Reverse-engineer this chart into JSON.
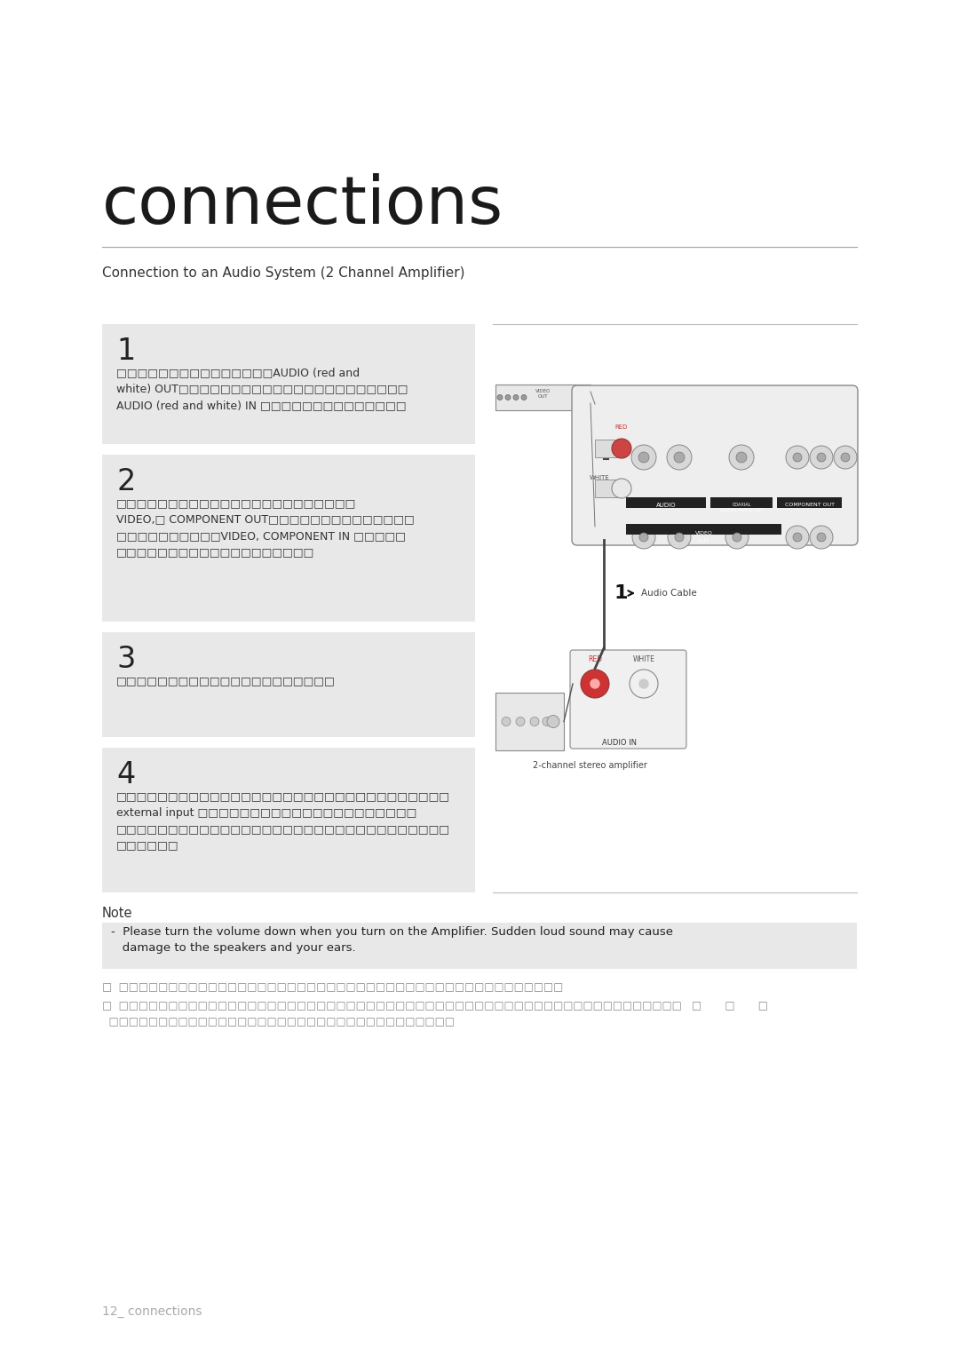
{
  "page_title": "connections",
  "subtitle": "Connection to an Audio System (2 Channel Amplifier)",
  "bg_color": "#ffffff",
  "title_color": "#1a1a1a",
  "subtitle_color": "#333333",
  "section_bg": "#e8e8e8",
  "note_bg": "#e8e8e8",
  "step1_num": "1",
  "step1_text": "□□□□□□□□□□□□□□□AUDIO (red and\nwhite) OUT□□□□□□□□□□□□□□□□□□□□□□\nAUDIO (red and white) IN □□□□□□□□□□□□□□",
  "step2_num": "2",
  "step2_text": "□□□□□□□□□□□□□□□□□□□□□□□\nVIDEO,□ COMPONENT OUT□□□□□□□□□□□□□□\n□□□□□□□□□□VIDEO, COMPONENT IN □□□□□\n□□□□□□□□□□□□□□□□□□□",
  "step3_num": "3",
  "step3_text": "□□□□□□□□□□□□□□□□□□□□□",
  "step4_num": "4",
  "step4_text": "□□□□□□□□□□□□□□□□□□□□□□□□□□□□□□□□\nexternal input □□□□□□□□□□□□□□□□□□□□□\n□□□□□□□□□□□□□□□□□□□□□□□□□□□□□□□□\n□□□□□□",
  "note_label": "Note",
  "note_bullet": "-  Please turn the volume down when you turn on the Amplifier. Sudden loud sound may cause\n   damage to the speakers and your ears.",
  "note_text2": "□  □□□□□□□□□□□□□□□□□□□□□□□□□□□□□□□□□□□□□□□□□□□□□",
  "note_text3": "□  □□□□□□□□□□□□□□□□□□□□□□□□□□□□□□□□□□□□□□□□□□□□□□□□□□□□□□□□□   □       □       □",
  "note_text4": "  □□□□□□□□□□□□□□□□□□□□□□□□□□□□□□□□□□□",
  "footer_text": "12_ connections",
  "footer_color": "#aaaaaa",
  "line_color": "#bbbbbb",
  "diagram_bg": "#f0f0f0",
  "diagram_border": "#999999"
}
